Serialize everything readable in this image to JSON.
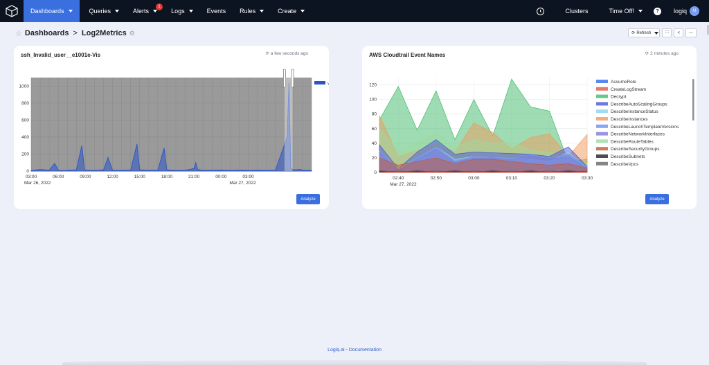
{
  "nav": {
    "items": [
      {
        "label": "Dashboards",
        "caret": true,
        "active": true
      },
      {
        "label": "Queries",
        "caret": true
      },
      {
        "label": "Alerts",
        "caret": true,
        "badge": "1"
      },
      {
        "label": "Logs",
        "caret": true
      },
      {
        "label": "Events",
        "caret": false
      },
      {
        "label": "Rules",
        "caret": true
      },
      {
        "label": "Create",
        "caret": true
      }
    ],
    "clusters_label": "Clusters",
    "time_off_label": "Time Off!",
    "help_icon": "?",
    "user_label": "logiq",
    "avatar_initial": "U"
  },
  "breadcrumb": {
    "root": "Dashboards",
    "separator": ">",
    "current": "Log2Metrics"
  },
  "toolbar": {
    "refresh_label": "Refresh"
  },
  "panels": [
    {
      "title": "ssh_Invalid_user__e1001e-Vis",
      "updated": "a few seconds ago",
      "analyze_label": "Analyze",
      "chart_data": {
        "type": "area",
        "legend": [
          "value"
        ],
        "legend_color": "#2b55c8",
        "ylim": [
          0,
          1100
        ],
        "y_ticks": [
          "0",
          "200",
          "400",
          "600",
          "800",
          "1000"
        ],
        "x_ticks": [
          "03:00",
          "06:00",
          "09:00",
          "12:00",
          "15:00",
          "18:00",
          "21:00",
          "00:00",
          "03:00"
        ],
        "date_labels": [
          "Mar 26, 2022",
          "Mar 27, 2022"
        ],
        "x_hours": [
          0,
          1,
          2,
          2.6,
          3,
          3.2,
          4,
          5,
          5.6,
          5.9,
          6,
          7,
          8,
          8.5,
          9,
          10,
          11,
          11.7,
          12,
          13,
          14,
          14.7,
          15,
          16,
          17,
          18,
          18.2,
          18.4,
          19,
          20,
          21,
          22,
          23,
          24,
          25,
          26,
          27,
          28.3,
          28.5,
          28.7,
          29,
          29.8,
          30,
          31
        ],
        "values": [
          5,
          20,
          10,
          90,
          10,
          5,
          8,
          15,
          300,
          20,
          10,
          8,
          15,
          160,
          10,
          8,
          12,
          320,
          15,
          10,
          10,
          270,
          15,
          8,
          10,
          30,
          100,
          20,
          8,
          10,
          12,
          8,
          10,
          8,
          10,
          8,
          10,
          400,
          1040,
          30,
          15,
          20,
          10,
          8
        ]
      }
    },
    {
      "title": "AWS Cloudtrail Event Names",
      "updated": "2 minutes ago",
      "analyze_label": "Analyze",
      "chart_data": {
        "type": "area",
        "ylim": [
          0,
          130
        ],
        "y_ticks": [
          "0",
          "20",
          "40",
          "60",
          "80",
          "100",
          "120"
        ],
        "x_ticks": [
          "02:40",
          "02:50",
          "03:00",
          "03:10",
          "03:20",
          "03:30"
        ],
        "date_label": "Mar 27, 2022",
        "x_minutes": [
          0,
          5,
          10,
          15,
          20,
          25,
          30,
          35,
          40,
          45,
          50,
          55
        ],
        "series": [
          {
            "name": "AssumeRole",
            "color": "#2f6ee8",
            "values": [
              1,
              2,
              1,
              2,
              1,
              2,
              1,
              2,
              1,
              2,
              1,
              2
            ]
          },
          {
            "name": "CreateLogStream",
            "color": "#e05a47",
            "values": [
              0,
              1,
              0,
              1,
              0,
              1,
              0,
              1,
              0,
              1,
              0,
              1
            ]
          },
          {
            "name": "Decrypt",
            "color": "#3fba67",
            "values": [
              72,
              118,
              58,
              112,
              45,
              100,
              50,
              128,
              90,
              84,
              15,
              18
            ]
          },
          {
            "name": "DescribeAutoScalingGroups",
            "color": "#4a56d8",
            "values": [
              38,
              5,
              28,
              45,
              25,
              28,
              27,
              26,
              25,
              22,
              35,
              8
            ]
          },
          {
            "name": "DescribeInstanceStatus",
            "color": "#8ad2e8",
            "values": [
              30,
              5,
              20,
              35,
              18,
              22,
              20,
              20,
              18,
              15,
              28,
              6
            ]
          },
          {
            "name": "DescribeInstances",
            "color": "#f09a5c",
            "values": [
              78,
              22,
              30,
              40,
              28,
              68,
              55,
              32,
              48,
              53,
              22,
              52
            ]
          },
          {
            "name": "DescribeLaunchTemplateVersions",
            "color": "#6e8ef0",
            "values": [
              30,
              4,
              20,
              35,
              15,
              22,
              22,
              20,
              25,
              20,
              25,
              8
            ]
          },
          {
            "name": "DescribeNetworkInterfaces",
            "color": "#7f78d6",
            "values": [
              28,
              3,
              18,
              32,
              14,
              20,
              20,
              18,
              22,
              18,
              22,
              6
            ]
          },
          {
            "name": "DescribeRouteTables",
            "color": "#9fd8a2",
            "values": [
              60,
              30,
              40,
              55,
              35,
              45,
              40,
              42,
              30,
              28,
              18,
              12
            ]
          },
          {
            "name": "DescribeSecurityGroups",
            "color": "#c25b3a",
            "values": [
              20,
              10,
              15,
              20,
              12,
              18,
              18,
              15,
              12,
              10,
              12,
              6
            ]
          },
          {
            "name": "DescribeSubnets",
            "color": "#222222",
            "values": [
              2,
              1,
              2,
              1,
              2,
              1,
              2,
              1,
              2,
              1,
              2,
              1
            ]
          },
          {
            "name": "DescribeVpcs",
            "color": "#666666",
            "values": [
              1,
              2,
              1,
              2,
              1,
              2,
              1,
              2,
              1,
              2,
              1,
              2
            ]
          }
        ]
      }
    }
  ],
  "footer": {
    "text": "Logiq.ai - Documentation"
  }
}
